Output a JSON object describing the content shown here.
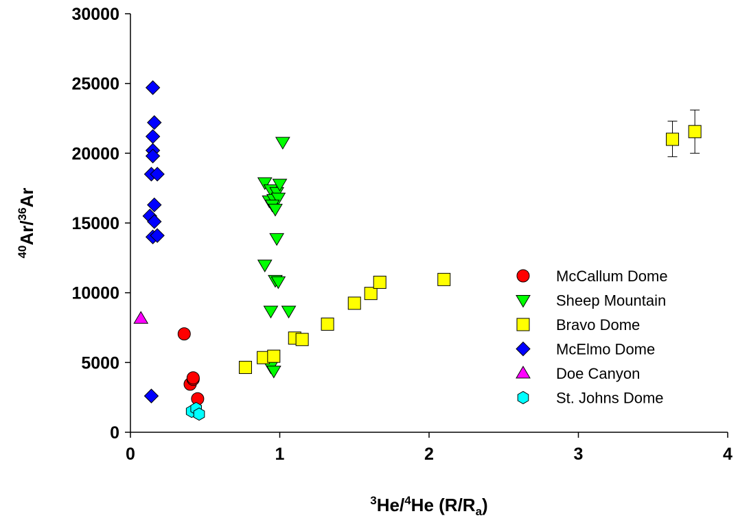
{
  "chart_data": {
    "type": "scatter",
    "xlim": [
      0,
      4
    ],
    "ylim": [
      0,
      30000
    ],
    "x_ticks": [
      "0",
      "1",
      "2",
      "3",
      "4"
    ],
    "y_ticks": [
      "0",
      "5000",
      "10000",
      "15000",
      "20000",
      "25000",
      "30000"
    ],
    "x_tick_values": [
      0,
      1,
      2,
      3,
      4
    ],
    "y_tick_values": [
      0,
      5000,
      10000,
      15000,
      20000,
      25000,
      30000
    ],
    "xlabel": {
      "sup1": "3",
      "part1": "He/",
      "sup2": "4",
      "part2": "He (R/R",
      "sub": "a",
      "part3": ")"
    },
    "ylabel": {
      "sup1": "40",
      "part1": "Ar/",
      "sup2": "36",
      "part2": "Ar"
    },
    "legend_position": "right",
    "grid": false,
    "series": [
      {
        "name": "McCallum Dome",
        "marker": "circle",
        "color": "#ff0000",
        "points": [
          [
            0.36,
            7050
          ],
          [
            0.4,
            3450
          ],
          [
            0.42,
            3800
          ],
          [
            0.42,
            3900
          ],
          [
            0.45,
            2400
          ]
        ]
      },
      {
        "name": "Sheep Mountain",
        "marker": "triangle-down",
        "color": "#00ff00",
        "points": [
          [
            1.02,
            20800
          ],
          [
            0.9,
            17900
          ],
          [
            0.94,
            17400
          ],
          [
            0.98,
            17200
          ],
          [
            1.0,
            17800
          ],
          [
            0.93,
            16600
          ],
          [
            0.96,
            16700
          ],
          [
            0.99,
            16800
          ],
          [
            0.95,
            16300
          ],
          [
            0.97,
            16000
          ],
          [
            0.98,
            13900
          ],
          [
            0.9,
            12000
          ],
          [
            0.97,
            10900
          ],
          [
            0.99,
            10800
          ],
          [
            0.94,
            8700
          ],
          [
            1.06,
            8700
          ],
          [
            0.94,
            4700
          ],
          [
            0.96,
            4400
          ]
        ]
      },
      {
        "name": "Bravo Dome",
        "marker": "square",
        "color": "#ffff00",
        "points": [
          [
            0.77,
            4650
          ],
          [
            0.89,
            5350
          ],
          [
            0.96,
            5450
          ],
          [
            1.1,
            6750
          ],
          [
            1.15,
            6650
          ],
          [
            1.32,
            7750
          ],
          [
            1.5,
            9250
          ],
          [
            1.61,
            9950
          ],
          [
            1.67,
            10750
          ],
          [
            2.1,
            10950
          ],
          [
            3.63,
            21000
          ],
          [
            3.78,
            21550
          ]
        ],
        "error_bars": [
          {
            "x": 3.63,
            "y": 21000,
            "low": 19750,
            "high": 22300
          },
          {
            "x": 3.78,
            "y": 21550,
            "low": 20000,
            "high": 23100
          }
        ]
      },
      {
        "name": "McElmo Dome",
        "marker": "diamond",
        "color": "#0000ff",
        "points": [
          [
            0.15,
            24700
          ],
          [
            0.16,
            22200
          ],
          [
            0.15,
            21200
          ],
          [
            0.15,
            20200
          ],
          [
            0.15,
            19800
          ],
          [
            0.14,
            18500
          ],
          [
            0.18,
            18500
          ],
          [
            0.16,
            16300
          ],
          [
            0.13,
            15500
          ],
          [
            0.16,
            15100
          ],
          [
            0.15,
            14000
          ],
          [
            0.18,
            14100
          ],
          [
            0.14,
            2600
          ]
        ]
      },
      {
        "name": "Doe Canyon",
        "marker": "triangle-up",
        "color": "#ff00ff",
        "points": [
          [
            0.07,
            8150
          ]
        ]
      },
      {
        "name": "St. Johns Dome",
        "marker": "hexagon",
        "color": "#00ffff",
        "points": [
          [
            0.41,
            1500
          ],
          [
            0.44,
            1700
          ],
          [
            0.46,
            1300
          ]
        ]
      }
    ]
  }
}
